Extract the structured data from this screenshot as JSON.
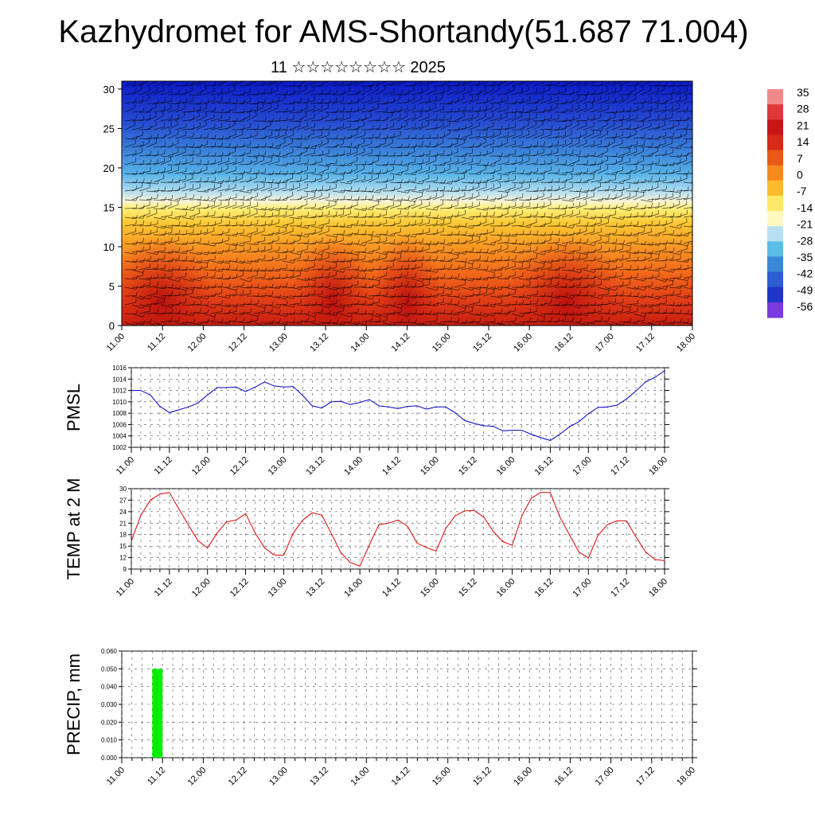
{
  "title": "Kazhydromet for AMS-Shortandy(51.687 71.004)",
  "subtitle": "11 ☆☆☆☆☆☆☆☆ 2025",
  "chart_data": [
    {
      "type": "heatmap",
      "name": "cross-section",
      "yticks": [
        "0",
        "5",
        "10",
        "15",
        "20",
        "25",
        "30"
      ],
      "ylim": [
        0,
        31
      ],
      "xticks": [
        "11.00",
        "11.12",
        "12.00",
        "12.12",
        "13.00",
        "13.12",
        "14.00",
        "14.12",
        "15.00",
        "15.12",
        "16.00",
        "16.12",
        "17.00",
        "17.12",
        "18.00"
      ],
      "colorbar_labels": [
        "35",
        "28",
        "21",
        "14",
        "7",
        "0",
        "-7",
        "-14",
        "-21",
        "-28",
        "-35",
        "-42",
        "-49",
        "-56"
      ],
      "colors": [
        "#f08a8a",
        "#e2383c",
        "#c81515",
        "#d82a1a",
        "#ea5a14",
        "#f58a1c",
        "#fbbc2c",
        "#fde868",
        "#fff8c0",
        "#b6e0ef",
        "#5cbde8",
        "#3888d8",
        "#2e5bd6",
        "#1f35c8",
        "#7a3ae0"
      ],
      "overlay": "wind barbs"
    },
    {
      "type": "line",
      "name": "PMSL",
      "ylabel": "PMSL",
      "yticks": [
        "1002",
        "1004",
        "1006",
        "1008",
        "1010",
        "1012",
        "1014",
        "1016"
      ],
      "ylim": [
        1002,
        1016
      ],
      "xticks": [
        "11.00",
        "11.12",
        "12.00",
        "12.12",
        "13.00",
        "13.12",
        "14.00",
        "14.12",
        "15.00",
        "15.12",
        "16.00",
        "16.12",
        "17.00",
        "17.12",
        "18.00"
      ],
      "color": "#0000cc",
      "x": [
        0,
        3,
        6,
        9,
        12,
        15,
        18,
        21,
        24,
        27,
        30,
        33,
        36,
        39,
        42,
        45,
        48,
        51,
        54,
        57,
        60,
        63,
        66,
        69,
        72,
        75,
        78,
        81,
        84,
        87,
        90,
        93,
        96,
        99,
        102,
        105,
        108,
        111,
        114,
        117,
        120,
        123,
        126,
        129,
        132,
        135,
        138,
        141,
        144,
        147,
        150,
        153,
        156,
        159,
        162,
        165,
        168
      ],
      "values": [
        1012.0,
        1012.0,
        1011.2,
        1009.2,
        1008.1,
        1008.6,
        1009.1,
        1009.8,
        1011.2,
        1012.5,
        1012.5,
        1012.6,
        1011.8,
        1012.6,
        1013.5,
        1012.8,
        1012.6,
        1012.7,
        1011.1,
        1009.3,
        1008.9,
        1010.0,
        1010.1,
        1009.5,
        1009.9,
        1010.4,
        1009.3,
        1009.1,
        1008.8,
        1009.2,
        1009.3,
        1008.7,
        1009.1,
        1009.1,
        1008.1,
        1006.7,
        1006.2,
        1005.8,
        1005.7,
        1004.9,
        1005.0,
        1005.0,
        1004.3,
        1003.7,
        1003.2,
        1004.3,
        1005.6,
        1006.5,
        1007.9,
        1009.0,
        1009.1,
        1009.4,
        1010.5,
        1011.9,
        1013.5,
        1014.3,
        1015.5
      ]
    },
    {
      "type": "line",
      "name": "TEMP at 2 M",
      "ylabel": "TEMP at 2 M",
      "yticks": [
        "9",
        "12",
        "15",
        "18",
        "21",
        "24",
        "27",
        "30"
      ],
      "ylim": [
        9,
        30
      ],
      "xticks": [
        "11.00",
        "11.12",
        "12.00",
        "12.12",
        "13.00",
        "13.12",
        "14.00",
        "14.12",
        "15.00",
        "15.12",
        "16.00",
        "16.12",
        "17.00",
        "17.12",
        "18.00"
      ],
      "color": "#dd0000",
      "x": [
        0,
        3,
        6,
        9,
        12,
        15,
        18,
        21,
        24,
        27,
        30,
        33,
        36,
        39,
        42,
        45,
        48,
        51,
        54,
        57,
        60,
        63,
        66,
        69,
        72,
        75,
        78,
        81,
        84,
        87,
        90,
        93,
        96,
        99,
        102,
        105,
        108,
        111,
        114,
        117,
        120,
        123,
        126,
        129,
        132,
        135,
        138,
        141,
        144,
        147,
        150,
        153,
        156,
        159,
        162,
        165,
        168
      ],
      "values": [
        16.3,
        23.1,
        27.0,
        28.6,
        29.0,
        24.7,
        20.5,
        16.4,
        14.5,
        18.4,
        21.3,
        21.8,
        23.5,
        18.5,
        14.5,
        12.7,
        12.6,
        18.4,
        21.8,
        23.7,
        23.1,
        18.3,
        13.3,
        10.7,
        9.8,
        15.3,
        20.6,
        21.0,
        21.8,
        20.2,
        15.8,
        14.6,
        13.7,
        19.5,
        22.9,
        24.2,
        24.3,
        22.6,
        18.9,
        16.2,
        15.2,
        22.8,
        27.5,
        29.0,
        29.0,
        22.6,
        18.0,
        13.5,
        11.9,
        17.8,
        20.6,
        21.6,
        21.6,
        17.4,
        13.5,
        11.5,
        11.2
      ]
    },
    {
      "type": "bar",
      "name": "PRECIP, mm",
      "ylabel": "PRECIP, mm",
      "yticks": [
        "0.000",
        "0.010",
        "0.020",
        "0.030",
        "0.040",
        "0.050",
        "0.060"
      ],
      "ylim": [
        0,
        0.06
      ],
      "xticks": [
        "11.00",
        "11.12",
        "12.00",
        "12.12",
        "13.00",
        "13.12",
        "14.00",
        "14.12",
        "15.00",
        "15.12",
        "16.00",
        "16.12",
        "17.00",
        "17.12",
        "18.00"
      ],
      "color": "#00ee00",
      "bars": [
        {
          "x_start": 9,
          "x_end": 12,
          "value": 0.05
        }
      ]
    }
  ]
}
